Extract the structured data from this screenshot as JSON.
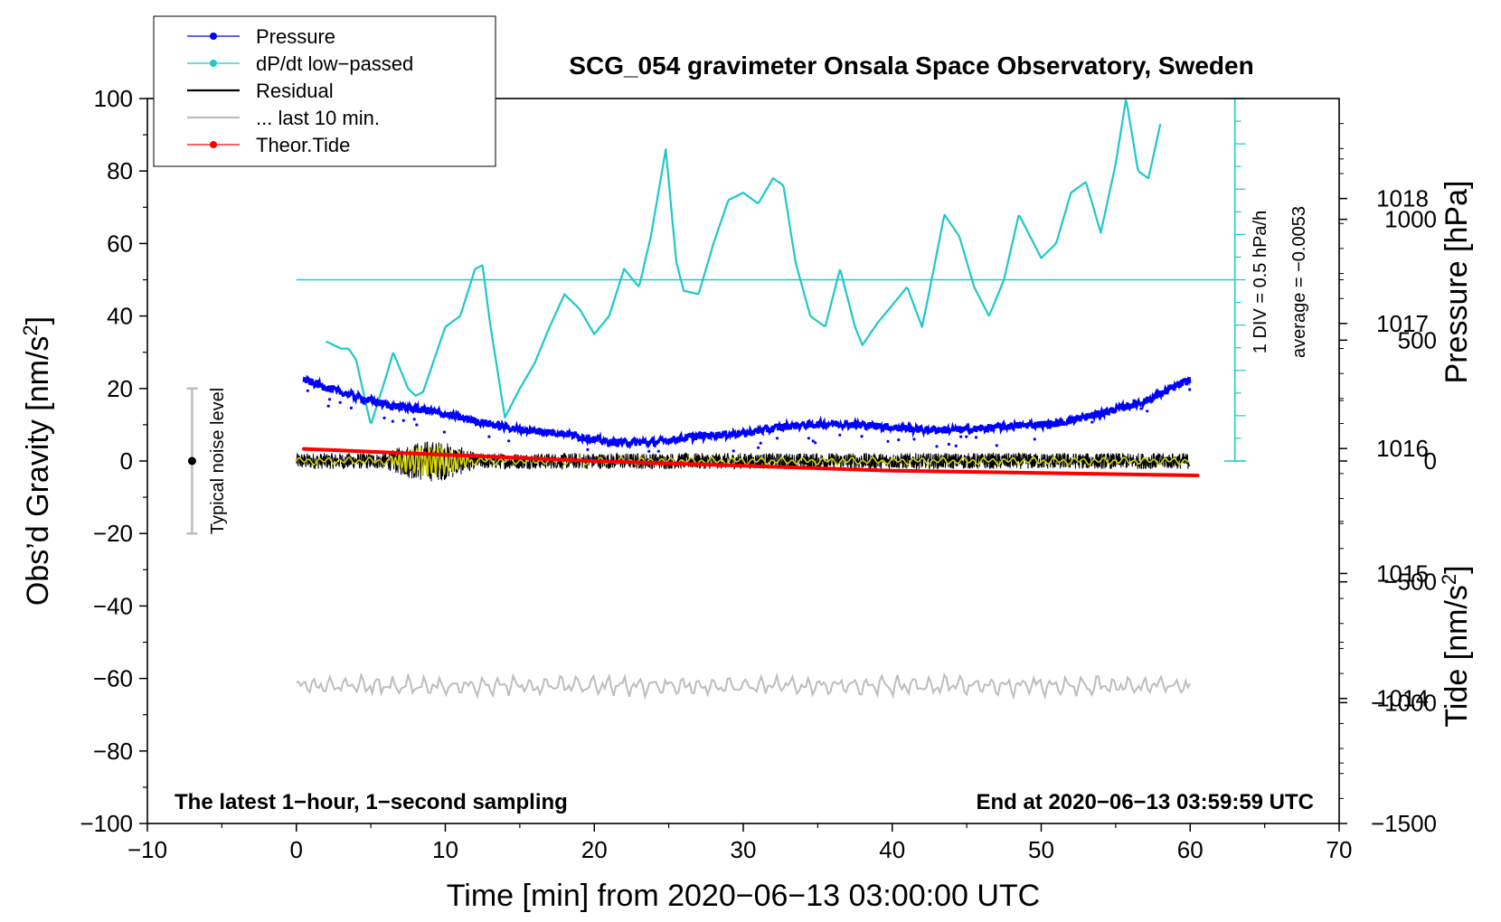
{
  "chart_data": {
    "type": "line",
    "title": "SCG_054 gravimeter Onsala Space Observatory, Sweden",
    "xlabel": "Time [min] from 2020−06−13 03:00:00 UTC",
    "ylabel": "Obs’d Gravity [nm/s",
    "ylabel_sup": "2",
    "ylabel_end": "]",
    "y2label": "Pressure [hPa]",
    "y3label": "Tide [nm/s",
    "y3label_sup": "2",
    "y3label_end": "]",
    "xlim": [
      -10,
      70
    ],
    "ylim": [
      -100,
      100
    ],
    "pressure_range": [
      1013,
      1018.8
    ],
    "tide_range": [
      -1500,
      1500
    ],
    "x_ticks": [
      "−10",
      "0",
      "10",
      "20",
      "30",
      "40",
      "50",
      "60",
      "70"
    ],
    "x_tick_values": [
      -10,
      0,
      10,
      20,
      30,
      40,
      50,
      60,
      70
    ],
    "y_ticks": [
      "100",
      "80",
      "60",
      "40",
      "20",
      "0",
      "−20",
      "−40",
      "−60",
      "−80",
      "−100"
    ],
    "y_tick_values": [
      100,
      80,
      60,
      40,
      20,
      0,
      -20,
      -40,
      -60,
      -80,
      -100
    ],
    "pressure_ticks": [
      "1018",
      "1017",
      "1016",
      "1015",
      "1014"
    ],
    "pressure_tick_values": [
      1018,
      1017,
      1016,
      1015,
      1014
    ],
    "tide_ticks": [
      "1000",
      "500",
      "0",
      "−500",
      "−1000",
      "−1500"
    ],
    "tide_tick_values": [
      1000,
      500,
      0,
      -500,
      -1000,
      -1500
    ],
    "legend": [
      {
        "label": "Pressure",
        "color": "#0000ff",
        "marker": true
      },
      {
        "label": "dP/dt low−passed",
        "color": "#1ec8c8",
        "marker": true
      },
      {
        "label": "Residual",
        "color": "#000000",
        "marker": false
      },
      {
        "label": "... last 10 min.",
        "color": "#bdbdbd",
        "marker": false
      },
      {
        "label": "Theor.Tide",
        "color": "#ff0000",
        "marker": true
      }
    ],
    "annotations": {
      "bottom_left": "The latest 1−hour, 1−second sampling",
      "bottom_right": "End at 2020−06−13 03:59:59 UTC",
      "noise_label": "Typical noise level",
      "div_label": "1 DIV = 0.5 hPa/h",
      "average_label": "average = −0.0053"
    },
    "noise_bar": {
      "x": -7,
      "center": 0,
      "low": -20,
      "high": 20
    },
    "dpdt_axis": {
      "x": 63,
      "baseline_gravity": 50,
      "bottom_gravity": 0,
      "top_gravity": 100,
      "divisions": 16
    },
    "series": [
      {
        "name": "Pressure",
        "color": "#0000ff",
        "axis": "pressure",
        "x": [
          0.5,
          3,
          6,
          9,
          12,
          15,
          18,
          21,
          24,
          27,
          30,
          33,
          36,
          39,
          42,
          45,
          48,
          51,
          54,
          57,
          60
        ],
        "values": [
          1016.55,
          1016.45,
          1016.35,
          1016.3,
          1016.22,
          1016.15,
          1016.12,
          1016.05,
          1016.05,
          1016.1,
          1016.12,
          1016.18,
          1016.2,
          1016.18,
          1016.15,
          1016.15,
          1016.18,
          1016.2,
          1016.28,
          1016.38,
          1016.55
        ]
      },
      {
        "name": "dP/dt low-passed",
        "color": "#1ec8c8",
        "axis": "gravity",
        "x": [
          2,
          3,
          3.5,
          4,
          5,
          6,
          6.5,
          7.5,
          8,
          8.5,
          10,
          11,
          12,
          12.5,
          13,
          14,
          15,
          16,
          17,
          18,
          19,
          20,
          21,
          22,
          23,
          23.8,
          24.8,
          25.5,
          26,
          27,
          28,
          29,
          30,
          31,
          32,
          32.7,
          33.5,
          34.5,
          35.5,
          36.5,
          37.5,
          38,
          39,
          40,
          41,
          42,
          42.5,
          43.5,
          44.5,
          45.5,
          46.5,
          47.5,
          48.5,
          49.5,
          50,
          51,
          52,
          53,
          54,
          55,
          55.7,
          56.5,
          57.2,
          58
        ],
        "values": [
          33,
          31,
          31,
          28,
          10,
          23,
          30,
          20,
          18,
          19,
          37,
          40,
          53,
          54,
          38,
          12,
          20,
          27,
          37,
          46,
          42,
          35,
          40,
          53,
          48,
          62,
          86,
          55,
          47,
          46,
          60,
          72,
          74,
          71,
          78,
          76,
          55,
          40,
          37,
          53,
          37,
          32,
          38,
          43,
          48,
          37,
          47,
          68,
          62,
          48,
          40,
          50,
          68,
          60,
          56,
          60,
          74,
          77,
          63,
          82,
          100,
          80,
          78,
          93
        ]
      },
      {
        "name": "Residual",
        "color": "#000000",
        "axis": "gravity",
        "x": [
          0,
          60
        ],
        "values": [
          0,
          0
        ]
      },
      {
        "name": "... last 10 min.",
        "color": "#bdbdbd",
        "axis": "gravity",
        "x": [
          0,
          60
        ],
        "values": [
          -62,
          -62
        ]
      },
      {
        "name": "Theor.Tide",
        "color": "#ff0000",
        "axis": "tide",
        "x": [
          0.5,
          20,
          40,
          60.5
        ],
        "values": [
          50,
          0,
          -40,
          -60
        ]
      }
    ]
  }
}
